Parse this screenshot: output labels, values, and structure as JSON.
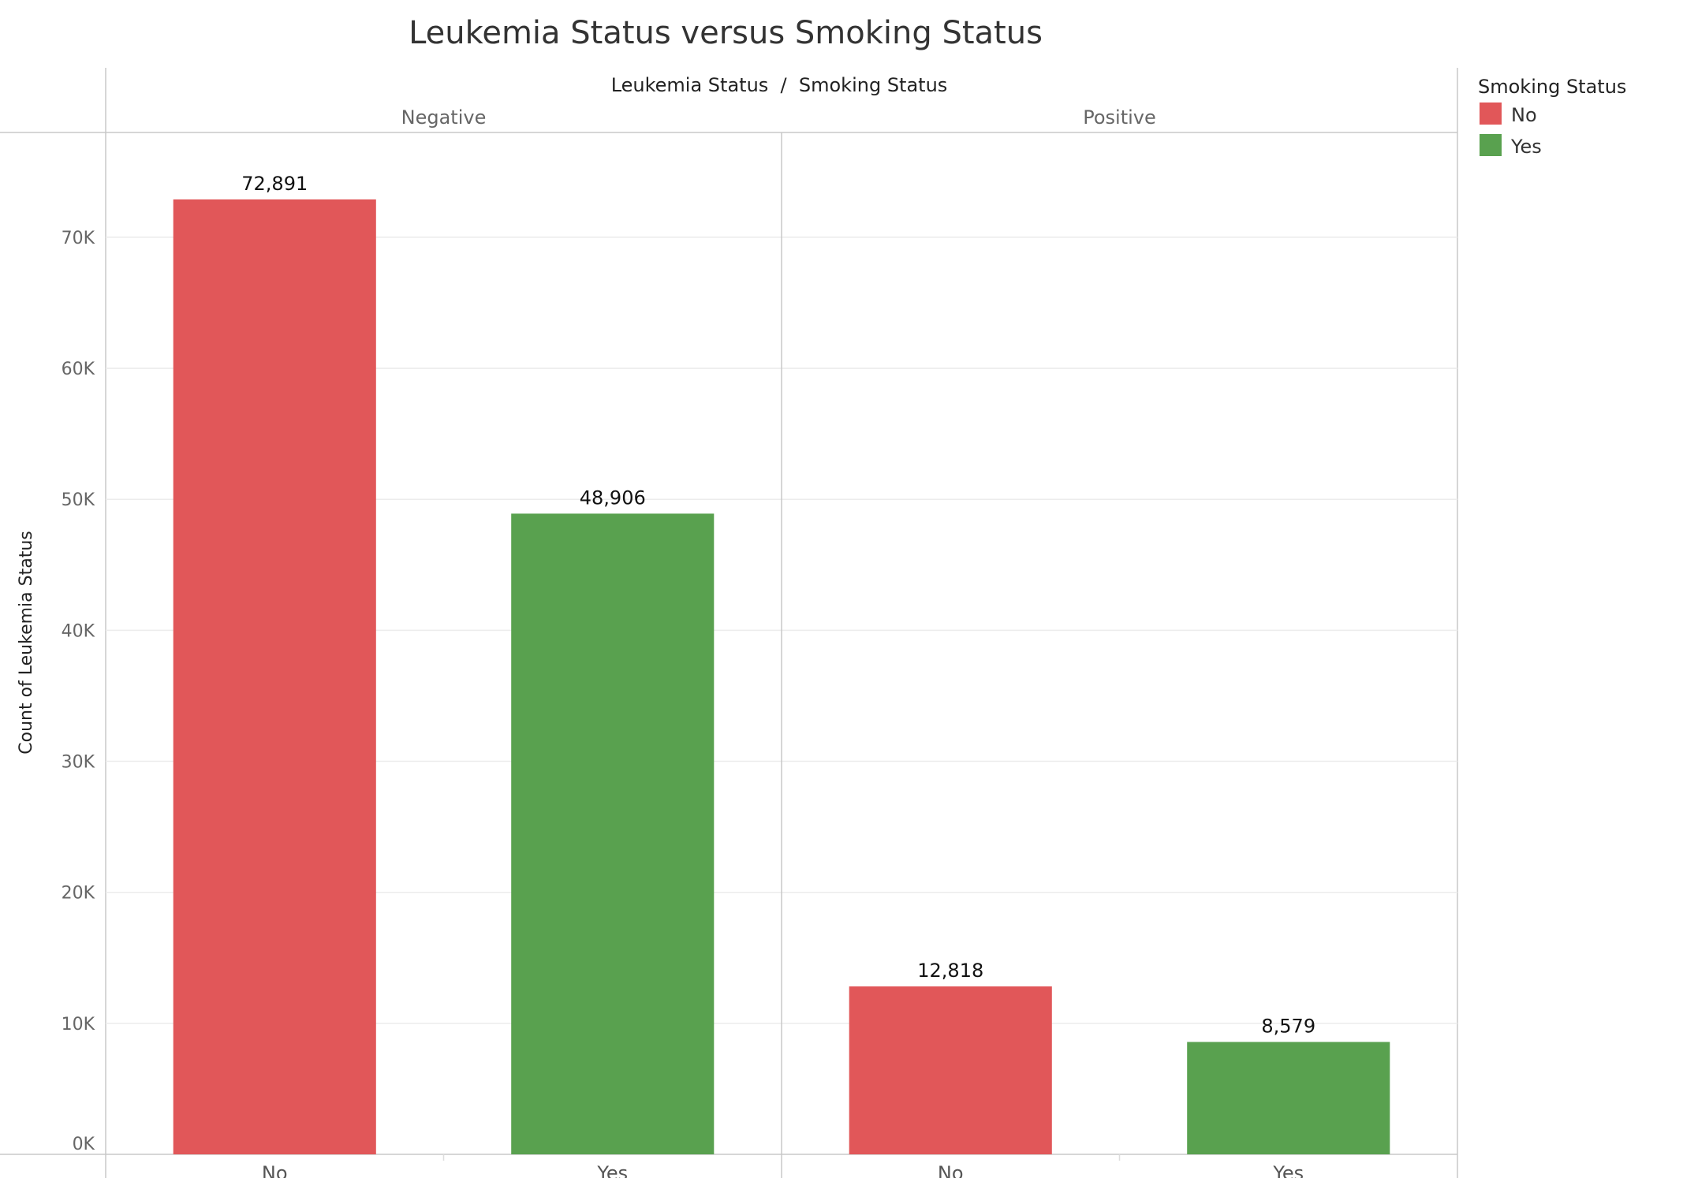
{
  "chart_data": {
    "type": "bar",
    "title": "Leukemia Status versus Smoking Status",
    "header_title": "Leukemia Status  /  Smoking Status",
    "ylabel": "Count of Leukemia Status",
    "ylim": [
      0,
      78000
    ],
    "yticks": [
      0,
      10000,
      20000,
      30000,
      40000,
      50000,
      60000,
      70000
    ],
    "ytick_labels": [
      "0K",
      "10K",
      "20K",
      "30K",
      "40K",
      "50K",
      "60K",
      "70K"
    ],
    "grid": true,
    "legend": {
      "title": "Smoking Status",
      "placement": "top-right",
      "items": [
        {
          "label": "No",
          "color": "#e15759"
        },
        {
          "label": "Yes",
          "color": "#59a14f"
        }
      ]
    },
    "panels": [
      {
        "label": "Negative",
        "categories": [
          "No",
          "Yes"
        ],
        "values": [
          72891,
          48906
        ],
        "value_labels": [
          "72,891",
          "48,906"
        ],
        "colors": [
          "#e15759",
          "#59a14f"
        ]
      },
      {
        "label": "Positive",
        "categories": [
          "No",
          "Yes"
        ],
        "values": [
          12818,
          8579
        ],
        "value_labels": [
          "12,818",
          "8,579"
        ],
        "colors": [
          "#e15759",
          "#59a14f"
        ]
      }
    ]
  }
}
